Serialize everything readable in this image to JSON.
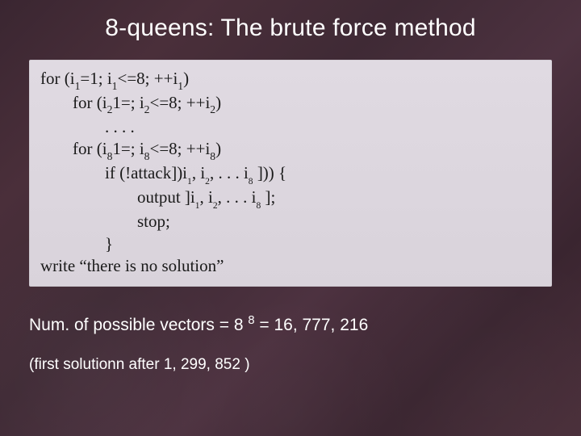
{
  "title": "8-queens: The brute force method",
  "code": {
    "l1_a": "for (i",
    "l1_sub1": "1",
    "l1_b": "=1; i",
    "l1_sub2": "1",
    "l1_c": "<=8; ++i",
    "l1_sub3": "1",
    "l1_d": ")",
    "l2_a": "for (i",
    "l2_sub1": "2",
    "l2_b": "1=; i",
    "l2_sub2": "2",
    "l2_c": "<=8; ++i",
    "l2_sub3": "2",
    "l2_d": ")",
    "l3": ". . . .",
    "l4_a": "for (i",
    "l4_sub1": "8",
    "l4_b": "1=; i",
    "l4_sub2": "8",
    "l4_c": "<=8; ++i",
    "l4_sub3": "8",
    "l4_d": ")",
    "l5_a": "if (!attack])i",
    "l5_sub1": "1",
    "l5_b": ", i",
    "l5_sub2": "2",
    "l5_c": ", . . . i",
    "l5_sub3": "8",
    "l5_d": " ])) {",
    "l6_a": "output ]i",
    "l6_sub1": "1",
    "l6_b": ", i",
    "l6_sub2": "2",
    "l6_c": ", . . . i",
    "l6_sub3": "8",
    "l6_d": " ];",
    "l7": "stop;",
    "l8": "}",
    "l9": "write “there is no solution”"
  },
  "footer": {
    "num_a": "Num. of possible vectors = 8 ",
    "num_exp": "8",
    "num_b": " = 16, 777, 216",
    "first": "(first solutionn after 1, 299, 852 )"
  },
  "colors": {
    "bg_base": "#3f2a35",
    "title_color": "#ffffff",
    "codebox_bg": "#dcd6de",
    "code_text": "#1a1a1a",
    "footer_text": "#ffffff"
  }
}
